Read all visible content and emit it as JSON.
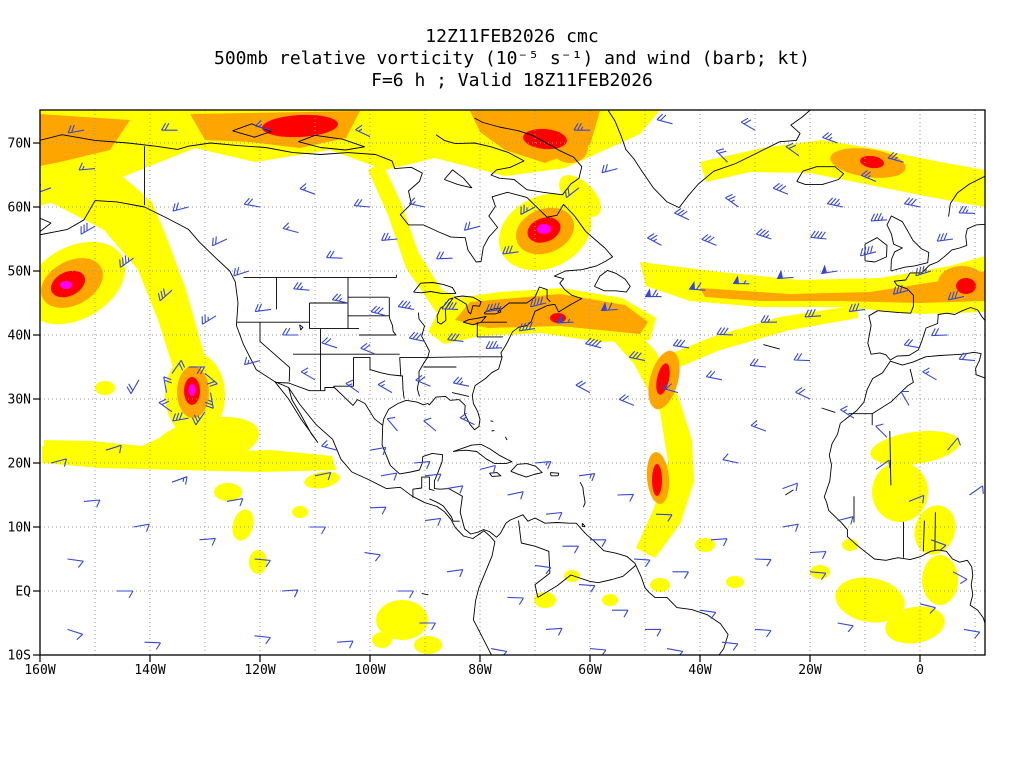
{
  "title": {
    "line1": "12Z11FEB2026 cmc",
    "line2": "500mb relative vorticity (10⁻⁵ s⁻¹) and wind (barb; kt)",
    "line3": "F=6 h ; Valid 18Z11FEB2026"
  },
  "axes": {
    "y_ticks": [
      "70N",
      "60N",
      "50N",
      "40N",
      "30N",
      "20N",
      "10N",
      "EQ",
      "10S"
    ],
    "x_ticks": [
      "160W",
      "140W",
      "120W",
      "100W",
      "80W",
      "60W",
      "40W",
      "20W",
      "0"
    ]
  },
  "colors": {
    "barb": "#3648d4",
    "coast": "#000000",
    "grid": "#9a9a9a",
    "frame": "#000000",
    "shading_levels": [
      "#ffff00",
      "#ffa500",
      "#ff0000",
      "#ff00ff"
    ]
  },
  "chart_data": {
    "type": "heatmap",
    "title": "500mb relative vorticity (10⁻⁵ s⁻¹) and wind (barb; kt)",
    "model": "cmc",
    "init_time": "12Z11FEB2026",
    "forecast_hour": 6,
    "valid_time": "18Z11FEB2026",
    "level": "500mb",
    "field": "relative vorticity",
    "field_units": "10⁻⁵ s⁻¹",
    "wind_units": "kt",
    "lon_range": [
      -160,
      11.8
    ],
    "lat_range": [
      -10,
      75.2
    ],
    "x_tick_lons": [
      -160,
      -140,
      -120,
      -100,
      -80,
      -60,
      -40,
      -20,
      0
    ],
    "y_tick_lats": [
      70,
      60,
      50,
      40,
      30,
      20,
      10,
      0,
      -10
    ],
    "shading_order": [
      "yellow",
      "orange",
      "red",
      "magenta"
    ],
    "vorticity_maxima": [
      {
        "lon": -113,
        "lat": 72.5
      },
      {
        "lon": -68,
        "lat": 70.5
      },
      {
        "lon": -68,
        "lat": 56.5
      },
      {
        "lon": -155,
        "lat": 48
      },
      {
        "lon": -132.5,
        "lat": 31
      },
      {
        "lon": -47,
        "lat": 33
      },
      {
        "lon": -48,
        "lat": 17.5
      },
      {
        "lon": 8.5,
        "lat": 48
      },
      {
        "lon": -66,
        "lat": 42.5
      },
      {
        "lon": -8.5,
        "lat": 67
      }
    ],
    "wind_barbs": [
      [
        -152,
        72,
        260,
        20
      ],
      [
        -135,
        72,
        270,
        20
      ],
      [
        -118,
        72,
        285,
        15
      ],
      [
        -100,
        71,
        295,
        15
      ],
      [
        -60,
        72,
        270,
        25
      ],
      [
        -45,
        73,
        285,
        20
      ],
      [
        -30,
        72,
        300,
        20
      ],
      [
        -15,
        70,
        290,
        25
      ],
      [
        -3,
        67,
        285,
        25
      ],
      [
        -158,
        63,
        250,
        20
      ],
      [
        -150,
        57,
        240,
        30
      ],
      [
        -143,
        52,
        235,
        35
      ],
      [
        -136,
        47,
        228,
        30
      ],
      [
        -128,
        43,
        238,
        25
      ],
      [
        -122,
        50,
        252,
        20
      ],
      [
        -150,
        66,
        265,
        15
      ],
      [
        -133,
        60,
        255,
        18
      ],
      [
        -126,
        55,
        245,
        20
      ],
      [
        -160,
        55,
        230,
        25
      ],
      [
        -118,
        44,
        262,
        22
      ],
      [
        -111,
        47,
        275,
        25
      ],
      [
        -104,
        45,
        282,
        25
      ],
      [
        -97,
        43,
        285,
        30
      ],
      [
        -113,
        40,
        270,
        20
      ],
      [
        -106,
        38,
        288,
        22
      ],
      [
        -99,
        37,
        292,
        22
      ],
      [
        -120,
        36,
        255,
        15
      ],
      [
        -110,
        33,
        300,
        15
      ],
      [
        -102,
        31,
        305,
        15
      ],
      [
        -133,
        35,
        90,
        20
      ],
      [
        -129,
        31,
        170,
        25
      ],
      [
        -133,
        27,
        260,
        28
      ],
      [
        -137,
        31,
        350,
        20
      ],
      [
        -130,
        34,
        130,
        20
      ],
      [
        -130,
        28,
        215,
        25
      ],
      [
        -136,
        28,
        305,
        22
      ],
      [
        -136,
        34,
        35,
        18
      ],
      [
        -142,
        33,
        210,
        18
      ],
      [
        -120,
        60,
        280,
        18
      ],
      [
        -110,
        62,
        290,
        15
      ],
      [
        -100,
        60,
        275,
        18
      ],
      [
        -95,
        55,
        265,
        25
      ],
      [
        -105,
        52,
        272,
        20
      ],
      [
        -113,
        56,
        285,
        15
      ],
      [
        -90,
        60,
        282,
        15
      ],
      [
        -80,
        57,
        255,
        22
      ],
      [
        -73,
        53,
        262,
        28
      ],
      [
        -70,
        60,
        242,
        25
      ],
      [
        -62,
        63,
        232,
        20
      ],
      [
        -55,
        66,
        255,
        20
      ],
      [
        -85,
        52,
        268,
        22
      ],
      [
        -92,
        44,
        280,
        35
      ],
      [
        -84,
        44,
        272,
        40
      ],
      [
        -76,
        44,
        262,
        45
      ],
      [
        -68,
        45,
        256,
        42
      ],
      [
        -90,
        39,
        282,
        28
      ],
      [
        -83,
        39,
        276,
        32
      ],
      [
        -76,
        38,
        268,
        35
      ],
      [
        -70,
        41,
        262,
        40
      ],
      [
        -96,
        31,
        300,
        15
      ],
      [
        -89,
        32,
        292,
        18
      ],
      [
        -82,
        32,
        282,
        24
      ],
      [
        -95,
        25,
        320,
        10
      ],
      [
        -88,
        25,
        310,
        12
      ],
      [
        -81,
        26,
        295,
        15
      ],
      [
        -100,
        22,
        80,
        10
      ],
      [
        -92,
        20,
        85,
        10
      ],
      [
        -63,
        42,
        268,
        55
      ],
      [
        -55,
        44,
        266,
        60
      ],
      [
        -47,
        46,
        270,
        65
      ],
      [
        -39,
        47,
        274,
        60
      ],
      [
        -31,
        48,
        271,
        55
      ],
      [
        -23,
        49,
        266,
        52
      ],
      [
        -15,
        50,
        261,
        48
      ],
      [
        -8,
        53,
        255,
        42
      ],
      [
        -58,
        38,
        285,
        38
      ],
      [
        -50,
        36,
        282,
        32
      ],
      [
        -42,
        38,
        278,
        32
      ],
      [
        -34,
        40,
        273,
        28
      ],
      [
        -26,
        42,
        270,
        26
      ],
      [
        -18,
        43,
        266,
        28
      ],
      [
        -10,
        44,
        262,
        30
      ],
      [
        -60,
        31,
        298,
        20
      ],
      [
        -52,
        29,
        292,
        20
      ],
      [
        -44,
        31,
        286,
        20
      ],
      [
        -36,
        33,
        281,
        18
      ],
      [
        -28,
        35,
        276,
        18
      ],
      [
        -20,
        36,
        272,
        18
      ],
      [
        -42,
        58,
        295,
        30
      ],
      [
        -33,
        60,
        305,
        25
      ],
      [
        -24,
        62,
        292,
        28
      ],
      [
        -14,
        60,
        282,
        34
      ],
      [
        -27,
        55,
        288,
        34
      ],
      [
        -37,
        54,
        292,
        28
      ],
      [
        -17,
        55,
        276,
        38
      ],
      [
        -6,
        58,
        266,
        34
      ],
      [
        -47,
        54,
        298,
        24
      ],
      [
        -35,
        67,
        315,
        20
      ],
      [
        -22,
        68,
        305,
        22
      ],
      [
        -8,
        64,
        292,
        25
      ],
      [
        0,
        60,
        282,
        30
      ],
      [
        -70,
        20,
        85,
        15
      ],
      [
        -62,
        18,
        82,
        15
      ],
      [
        -55,
        15,
        88,
        12
      ],
      [
        -48,
        12,
        92,
        10
      ],
      [
        -75,
        15,
        78,
        10
      ],
      [
        -68,
        12,
        84,
        10
      ],
      [
        -60,
        8,
        90,
        10
      ],
      [
        -52,
        5,
        94,
        10
      ],
      [
        -45,
        3,
        90,
        10
      ],
      [
        -38,
        8,
        86,
        10
      ],
      [
        -30,
        5,
        92,
        10
      ],
      [
        -40,
        -3,
        98,
        10
      ],
      [
        -30,
        -6,
        94,
        10
      ],
      [
        -50,
        -6,
        90,
        10
      ],
      [
        -80,
        19,
        76,
        10
      ],
      [
        -86,
        16,
        80,
        10
      ],
      [
        -90,
        18,
        84,
        10
      ],
      [
        -25,
        10,
        80,
        10
      ],
      [
        -20,
        3,
        95,
        10
      ],
      [
        -15,
        -5,
        100,
        10
      ],
      [
        -152,
        14,
        85,
        10
      ],
      [
        -143,
        10,
        80,
        10
      ],
      [
        -155,
        5,
        98,
        10
      ],
      [
        -146,
        0,
        90,
        10
      ],
      [
        -131,
        8,
        85,
        10
      ],
      [
        -121,
        5,
        95,
        10
      ],
      [
        -136,
        17,
        70,
        14
      ],
      [
        -126,
        14,
        80,
        10
      ],
      [
        -111,
        10,
        90,
        10
      ],
      [
        -101,
        6,
        98,
        10
      ],
      [
        -95,
        0,
        90,
        10
      ],
      [
        -116,
        0,
        86,
        10
      ],
      [
        -155,
        -6,
        108,
        10
      ],
      [
        -141,
        -8,
        92,
        10
      ],
      [
        -121,
        -7,
        96,
        10
      ],
      [
        -106,
        -8,
        86,
        10
      ],
      [
        -91,
        -5,
        90,
        10
      ],
      [
        -86,
        3,
        82,
        10
      ],
      [
        -158,
        20,
        75,
        12
      ],
      [
        -148,
        22,
        72,
        12
      ],
      [
        -106,
        22,
        285,
        14
      ],
      [
        -98,
        18,
        80,
        10
      ],
      [
        -90,
        11,
        82,
        10
      ],
      [
        -100,
        13,
        88,
        10
      ],
      [
        -110,
        18,
        78,
        10
      ],
      [
        -70,
        4,
        98,
        10
      ],
      [
        -62,
        1,
        94,
        10
      ],
      [
        -56,
        -3,
        90,
        10
      ],
      [
        -68,
        -6,
        86,
        10
      ],
      [
        -75,
        -1,
        92,
        10
      ],
      [
        -78,
        -9,
        100,
        10
      ],
      [
        -60,
        -9,
        95,
        10
      ],
      [
        -46,
        -9,
        100,
        10
      ],
      [
        -36,
        -8,
        96,
        10
      ],
      [
        -65,
        7,
        90,
        10
      ],
      [
        -20,
        30,
        295,
        18
      ],
      [
        -12,
        27,
        302,
        14
      ],
      [
        -6,
        24,
        315,
        12
      ],
      [
        -8,
        19,
        55,
        10
      ],
      [
        -2,
        14,
        68,
        10
      ],
      [
        -15,
        11,
        76,
        10
      ],
      [
        -20,
        6,
        86,
        10
      ],
      [
        -25,
        16,
        70,
        12
      ],
      [
        2,
        8,
        110,
        10
      ],
      [
        6,
        3,
        118,
        10
      ],
      [
        0,
        -2,
        104,
        10
      ],
      [
        8,
        -6,
        100,
        10
      ],
      [
        -2,
        29,
        330,
        12
      ],
      [
        5,
        22,
        40,
        10
      ],
      [
        9,
        15,
        55,
        10
      ],
      [
        3,
        33,
        300,
        14
      ],
      [
        -28,
        25,
        290,
        14
      ],
      [
        -33,
        20,
        282,
        12
      ],
      [
        2,
        50,
        252,
        35
      ],
      [
        8,
        46,
        258,
        30
      ],
      [
        6,
        55,
        262,
        30
      ],
      [
        10,
        59,
        272,
        26
      ],
      [
        -2,
        47,
        255,
        30
      ],
      [
        5,
        40,
        268,
        22
      ],
      [
        10,
        36,
        275,
        18
      ],
      [
        0,
        38,
        280,
        18
      ]
    ]
  }
}
